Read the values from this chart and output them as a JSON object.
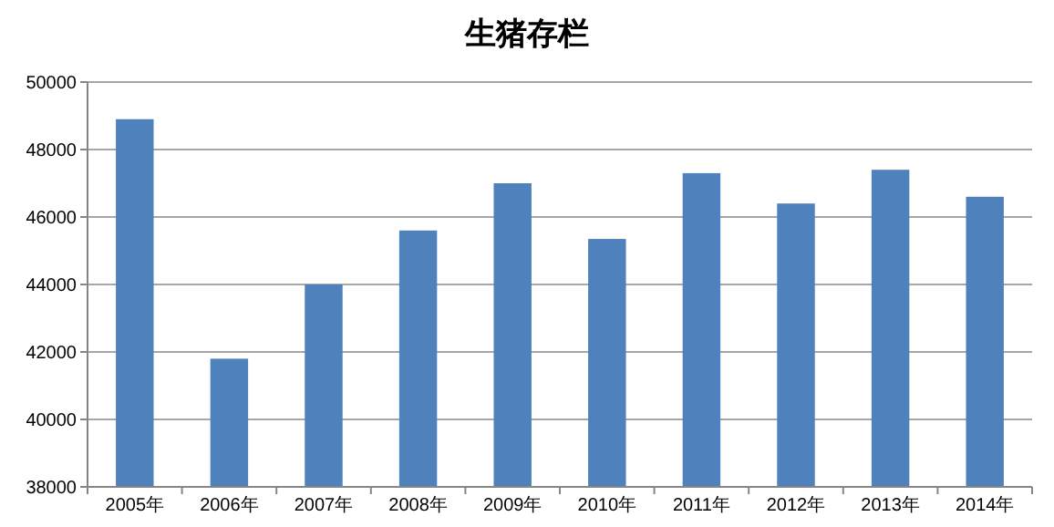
{
  "chart_data": {
    "type": "bar",
    "title": "生猪存栏",
    "categories": [
      "2005年",
      "2006年",
      "2007年",
      "2008年",
      "2009年",
      "2010年",
      "2011年",
      "2012年",
      "2013年",
      "2014年"
    ],
    "values": [
      48900,
      41800,
      44000,
      45600,
      47000,
      45350,
      47300,
      46400,
      47400,
      46600
    ],
    "color": "#4f81bd",
    "ylim": [
      38000,
      50000
    ],
    "yticks": [
      38000,
      40000,
      42000,
      44000,
      46000,
      48000,
      50000
    ],
    "grid": "y"
  }
}
